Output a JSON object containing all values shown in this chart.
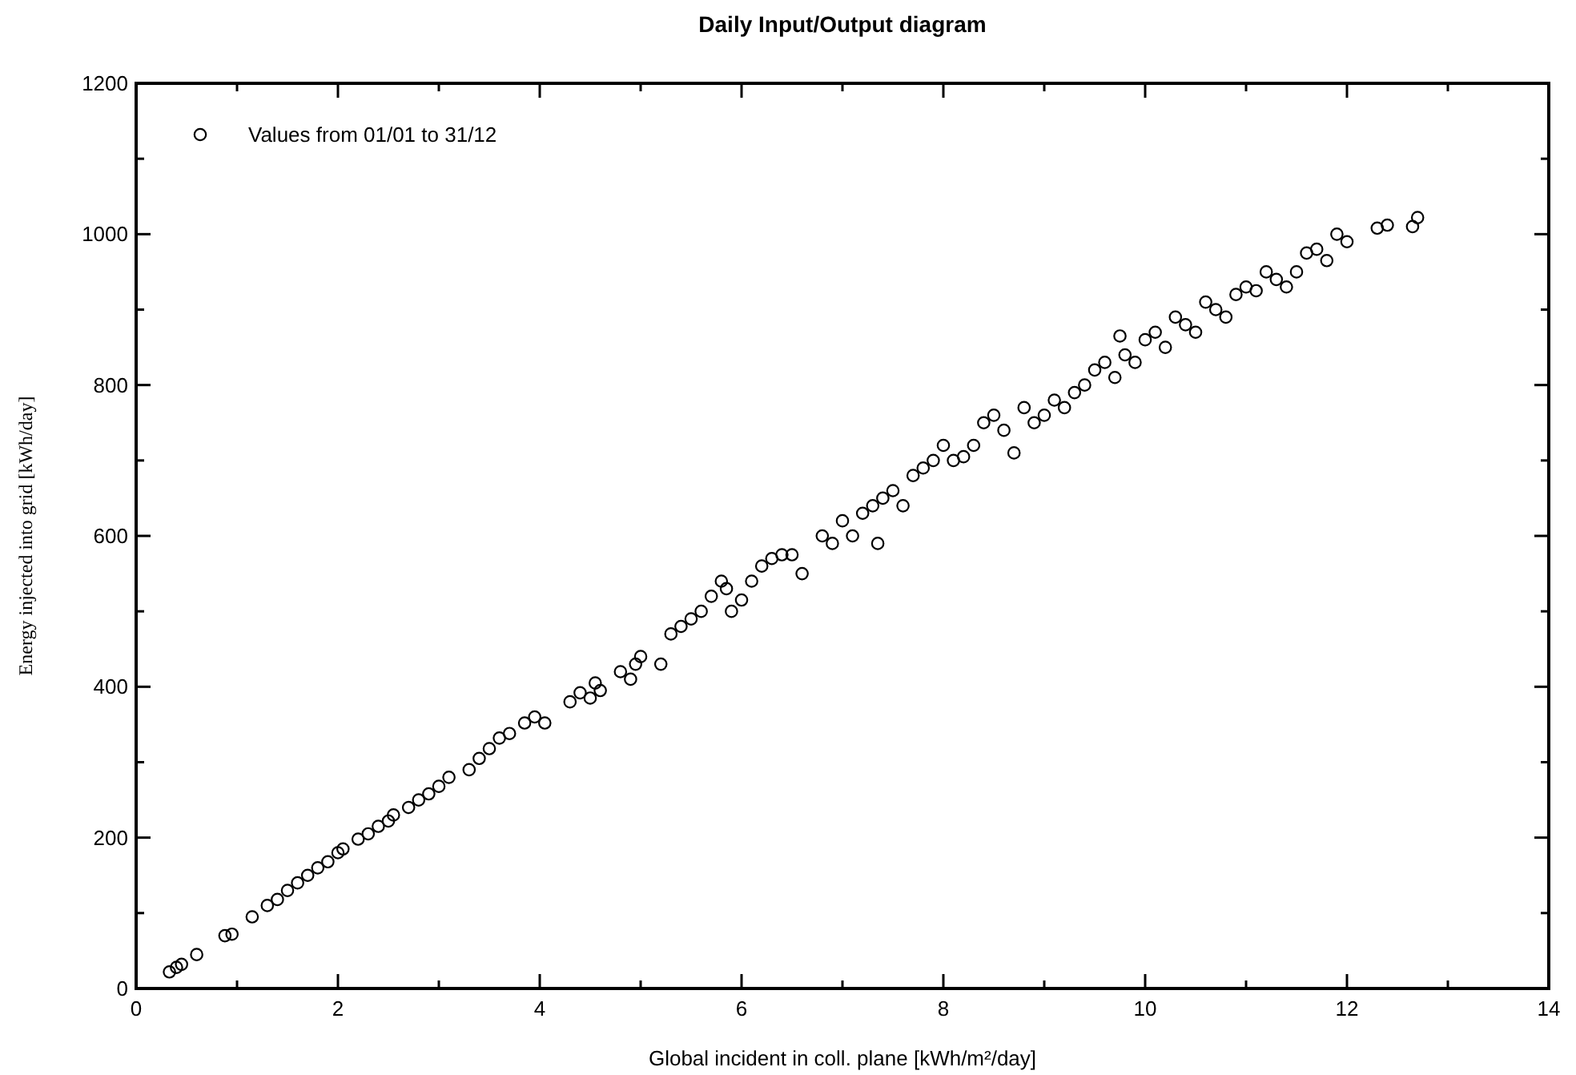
{
  "chart_data": {
    "type": "scatter",
    "title": "Daily Input/Output diagram",
    "xlabel": "Global incident in coll. plane [kWh/m²/day]",
    "ylabel": "Energy injected into grid [kWh/day]",
    "marker": "circle",
    "legend": "top left",
    "grid": false,
    "xlim": [
      0,
      14
    ],
    "ylim": [
      0,
      1200
    ],
    "xticks": [
      0,
      {
        "value": 1,
        "label": null
      },
      2,
      {
        "value": 3,
        "label": null
      },
      4,
      {
        "value": 5,
        "label": null
      },
      6,
      {
        "value": 7,
        "label": null
      },
      8,
      {
        "value": 9,
        "label": null
      },
      10,
      {
        "value": 11,
        "label": null
      },
      12,
      {
        "value": 13,
        "label": null
      },
      14
    ],
    "yticks": [
      0,
      {
        "value": 100,
        "label": null
      },
      200,
      {
        "value": 300,
        "label": null
      },
      400,
      {
        "value": 500,
        "label": null
      },
      600,
      {
        "value": 700,
        "label": null
      },
      800,
      {
        "value": 900,
        "label": null
      },
      1000,
      {
        "value": 1100,
        "label": null
      },
      1200
    ],
    "series": [
      {
        "name": "Values from 01/01 to 31/12",
        "color": "#000000",
        "x": [
          0.33,
          0.4,
          0.45,
          0.6,
          0.88,
          0.95,
          1.15,
          1.3,
          1.4,
          1.5,
          1.6,
          1.7,
          1.8,
          1.9,
          2.0,
          2.05,
          2.2,
          2.3,
          2.4,
          2.5,
          2.55,
          2.7,
          2.8,
          2.9,
          3.0,
          3.1,
          3.3,
          3.4,
          3.5,
          3.6,
          3.7,
          3.85,
          3.95,
          4.05,
          4.3,
          4.4,
          4.5,
          4.55,
          4.6,
          4.8,
          4.9,
          4.95,
          5.0,
          5.2,
          5.3,
          5.4,
          5.5,
          5.6,
          5.7,
          5.8,
          5.85,
          5.9,
          6.0,
          6.1,
          6.2,
          6.3,
          6.4,
          6.5,
          6.6,
          6.8,
          6.9,
          7.0,
          7.1,
          7.2,
          7.3,
          7.35,
          7.4,
          7.5,
          7.6,
          7.7,
          7.8,
          7.9,
          8.0,
          8.1,
          8.2,
          8.3,
          8.4,
          8.5,
          8.6,
          8.7,
          8.8,
          8.9,
          9.0,
          9.1,
          9.2,
          9.3,
          9.4,
          9.5,
          9.6,
          9.7,
          9.75,
          9.8,
          9.9,
          10.0,
          10.1,
          10.2,
          10.3,
          10.4,
          10.5,
          10.6,
          10.7,
          10.8,
          10.9,
          11.0,
          11.1,
          11.2,
          11.3,
          11.4,
          11.5,
          11.6,
          11.7,
          11.8,
          11.9,
          12.0,
          12.3,
          12.4,
          12.65,
          12.7
        ],
        "values": [
          22,
          28,
          32,
          45,
          70,
          72,
          95,
          110,
          118,
          130,
          140,
          150,
          160,
          168,
          180,
          185,
          198,
          205,
          215,
          222,
          230,
          240,
          250,
          258,
          268,
          280,
          290,
          305,
          318,
          332,
          338,
          352,
          360,
          352,
          380,
          392,
          385,
          405,
          395,
          420,
          410,
          430,
          440,
          430,
          470,
          480,
          490,
          500,
          520,
          540,
          530,
          500,
          515,
          540,
          560,
          570,
          575,
          575,
          550,
          600,
          590,
          620,
          600,
          630,
          640,
          590,
          650,
          660,
          640,
          680,
          690,
          700,
          720,
          700,
          705,
          720,
          750,
          760,
          740,
          710,
          770,
          750,
          760,
          780,
          770,
          790,
          800,
          820,
          830,
          810,
          865,
          840,
          830,
          860,
          870,
          850,
          890,
          880,
          870,
          910,
          900,
          890,
          920,
          930,
          925,
          950,
          940,
          930,
          950,
          975,
          980,
          965,
          1000,
          990,
          1008,
          1012,
          1010,
          1022
        ]
      }
    ]
  }
}
